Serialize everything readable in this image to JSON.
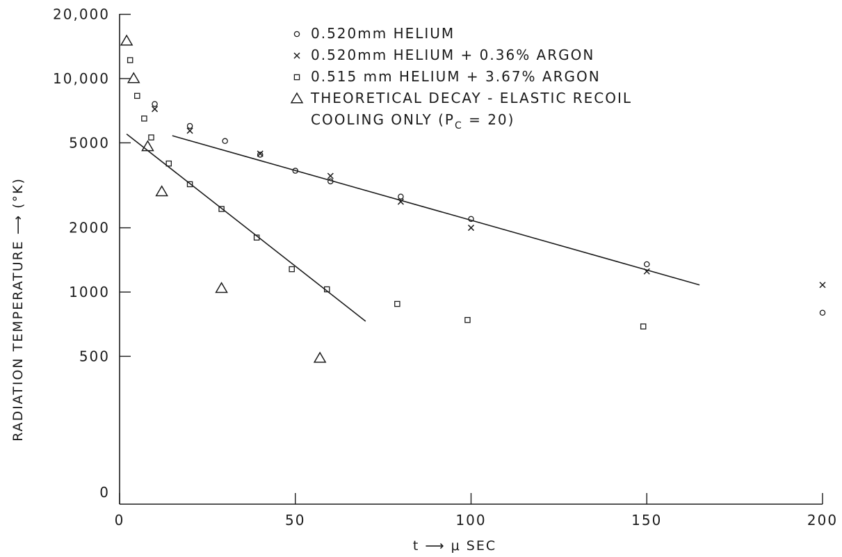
{
  "chart_data": {
    "type": "scatter",
    "xlabel": "t ⟶ μ SEC",
    "ylabel": "RADIATION TEMPERATURE ⟶ (°K)",
    "xlim": [
      0,
      200
    ],
    "yscale": "log",
    "ylim": [
      200,
      20000
    ],
    "x_ticks": [
      0,
      50,
      100,
      150,
      200
    ],
    "x_tick_labels": [
      "0",
      "50",
      "100",
      "150",
      "200"
    ],
    "y_ticks": [
      500,
      1000,
      2000,
      5000,
      10000,
      20000
    ],
    "y_tick_labels": [
      "500",
      "1000",
      "2000",
      "5000",
      "10,000",
      "20,000"
    ],
    "y_zero_label": "0",
    "grid": false,
    "legend_position": "top-center",
    "series": [
      {
        "name": "0.520mm HELIUM",
        "marker": "circle",
        "points": [
          [
            10,
            7600
          ],
          [
            20,
            6000
          ],
          [
            30,
            5100
          ],
          [
            40,
            4400
          ],
          [
            50,
            3700
          ],
          [
            60,
            3300
          ],
          [
            80,
            2800
          ],
          [
            100,
            2200
          ],
          [
            150,
            1350
          ],
          [
            200,
            800
          ]
        ]
      },
      {
        "name": "0.520mm HELIUM + 0.36% ARGON",
        "marker": "x",
        "points": [
          [
            10,
            7200
          ],
          [
            20,
            5700
          ],
          [
            40,
            4450
          ],
          [
            60,
            3500
          ],
          [
            80,
            2650
          ],
          [
            100,
            2000
          ],
          [
            150,
            1250
          ],
          [
            200,
            1080
          ]
        ]
      },
      {
        "name": "0.515 mm HELIUM + 3.67% ARGON",
        "marker": "square",
        "points": [
          [
            3,
            12200
          ],
          [
            5,
            8300
          ],
          [
            7,
            6500
          ],
          [
            9,
            5300
          ],
          [
            14,
            4000
          ],
          [
            20,
            3200
          ],
          [
            29,
            2450
          ],
          [
            39,
            1800
          ],
          [
            49,
            1280
          ],
          [
            59,
            1030
          ],
          [
            79,
            880
          ],
          [
            99,
            740
          ],
          [
            149,
            690
          ]
        ]
      },
      {
        "name": "THEORETICAL DECAY - ELASTIC RECOIL COOLING ONLY (P_C = 20)",
        "marker": "triangle",
        "points": [
          [
            2,
            15000
          ],
          [
            4,
            10000
          ],
          [
            8,
            4800
          ],
          [
            12,
            2950
          ],
          [
            29,
            1040
          ],
          [
            57,
            490
          ]
        ]
      }
    ],
    "fit_lines": [
      {
        "from": [
          15,
          5400
        ],
        "to": [
          165,
          1080
        ]
      },
      {
        "from": [
          2,
          5500
        ],
        "to": [
          70,
          730
        ]
      }
    ],
    "legend": [
      {
        "marker": "circle",
        "text": "0.520mm  HELIUM"
      },
      {
        "marker": "x",
        "text": "0.520mm  HELIUM + 0.36% ARGON"
      },
      {
        "marker": "square",
        "text": "0.515 mm  HELIUM + 3.67% ARGON"
      },
      {
        "marker": "triangle",
        "text": "THEORETICAL DECAY - ELASTIC RECOIL",
        "text2": "COOLING ONLY (P",
        "sub": "C",
        "text3": " = 20)"
      }
    ]
  }
}
